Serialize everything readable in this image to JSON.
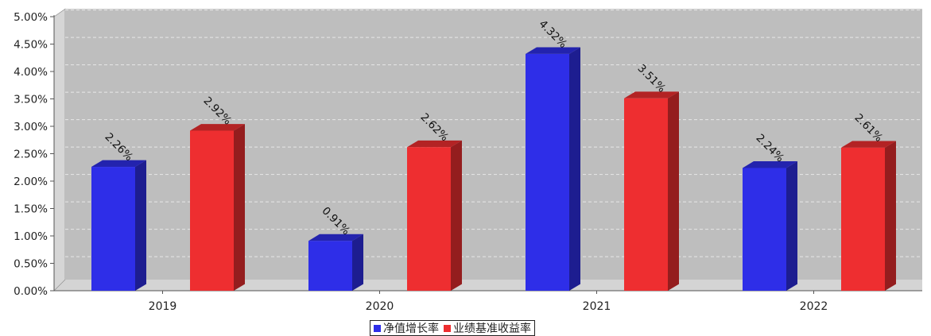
{
  "chart_data": {
    "type": "bar",
    "categories": [
      "2019",
      "2020",
      "2021",
      "2022"
    ],
    "series": [
      {
        "name": "净值增长率",
        "values": [
          2.26,
          0.91,
          4.32,
          2.24
        ],
        "labels": [
          "2.26%",
          "0.91%",
          "4.32%",
          "2.24%"
        ],
        "color": "#2e2ee8"
      },
      {
        "name": "业绩基准收益率",
        "values": [
          2.92,
          2.62,
          3.51,
          2.61
        ],
        "labels": [
          "2.92%",
          "2.62%",
          "3.51%",
          "2.61%"
        ],
        "color": "#ee2e30"
      }
    ],
    "ylim": [
      0,
      5
    ],
    "yticks": [
      "0.00%",
      "0.50%",
      "1.00%",
      "1.50%",
      "2.00%",
      "2.50%",
      "3.00%",
      "3.50%",
      "4.00%",
      "4.50%",
      "5.00%"
    ],
    "grid": true,
    "legend_position": "bottom"
  }
}
